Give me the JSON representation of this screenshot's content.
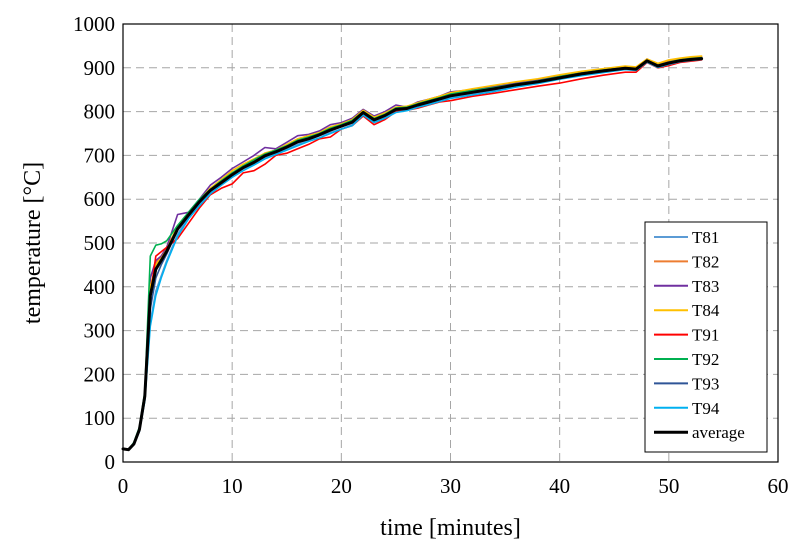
{
  "chart_data": {
    "type": "line",
    "title": "",
    "xlabel": "time [minutes]",
    "ylabel": "temperature [°C]",
    "xlim": [
      0,
      60
    ],
    "ylim": [
      0,
      1000
    ],
    "xticks": [
      0,
      10,
      20,
      30,
      40,
      50,
      60
    ],
    "yticks": [
      0,
      100,
      200,
      300,
      400,
      500,
      600,
      700,
      800,
      900,
      1000
    ],
    "grid": true,
    "legend_position": "bottom-right",
    "series": [
      {
        "name": "T81",
        "color": "#5b9bd5",
        "x": [
          0,
          0.5,
          1,
          1.5,
          2,
          2.5,
          3,
          3.5,
          4,
          5,
          6,
          7,
          8,
          9,
          10,
          11,
          12,
          13,
          14,
          15,
          16,
          17,
          18,
          19,
          20,
          21,
          22,
          23,
          24,
          25,
          26,
          27,
          28,
          29,
          30,
          32,
          34,
          36,
          38,
          40,
          42,
          44,
          46,
          47,
          48,
          49,
          50,
          51,
          52,
          53
        ],
        "y": [
          30,
          28,
          40,
          70,
          140,
          320,
          390,
          425,
          460,
          520,
          560,
          590,
          615,
          635,
          655,
          670,
          680,
          695,
          705,
          715,
          725,
          735,
          745,
          752,
          760,
          770,
          795,
          778,
          788,
          800,
          805,
          812,
          818,
          825,
          832,
          840,
          848,
          860,
          868,
          878,
          885,
          892,
          898,
          896,
          915,
          902,
          910,
          915,
          918,
          920
        ]
      },
      {
        "name": "T82",
        "color": "#ed7d31",
        "x": [
          0,
          0.5,
          1,
          1.5,
          2,
          2.5,
          3,
          3.5,
          4,
          5,
          6,
          7,
          8,
          9,
          10,
          11,
          12,
          13,
          14,
          15,
          16,
          17,
          18,
          19,
          20,
          21,
          22,
          23,
          24,
          25,
          26,
          27,
          28,
          29,
          30,
          32,
          34,
          36,
          38,
          40,
          42,
          44,
          46,
          47,
          48,
          49,
          50,
          51,
          52,
          53
        ],
        "y": [
          30,
          28,
          42,
          75,
          150,
          390,
          455,
          470,
          490,
          535,
          565,
          595,
          620,
          640,
          660,
          675,
          690,
          705,
          712,
          722,
          735,
          742,
          750,
          760,
          770,
          778,
          802,
          785,
          795,
          808,
          812,
          818,
          825,
          833,
          840,
          848,
          855,
          865,
          872,
          882,
          890,
          897,
          903,
          900,
          918,
          908,
          915,
          920,
          923,
          925
        ]
      },
      {
        "name": "T83",
        "color": "#7030a0",
        "x": [
          0,
          0.5,
          1,
          1.5,
          2,
          2.5,
          3,
          3.5,
          4,
          5,
          6,
          7,
          8,
          9,
          10,
          11,
          12,
          13,
          14,
          15,
          16,
          17,
          18,
          19,
          20,
          21,
          22,
          23,
          24,
          25,
          26,
          27,
          28,
          29,
          30,
          32,
          34,
          36,
          38,
          40,
          42,
          44,
          46,
          47,
          48,
          49,
          50,
          51,
          52,
          53
        ],
        "y": [
          30,
          28,
          42,
          75,
          150,
          420,
          460,
          470,
          490,
          565,
          570,
          600,
          632,
          650,
          670,
          685,
          700,
          718,
          715,
          730,
          745,
          748,
          756,
          770,
          775,
          785,
          805,
          790,
          800,
          815,
          810,
          822,
          828,
          835,
          845,
          850,
          858,
          865,
          873,
          880,
          888,
          895,
          900,
          898,
          920,
          905,
          912,
          918,
          920,
          922
        ]
      },
      {
        "name": "T84",
        "color": "#ffc000",
        "x": [
          0,
          0.5,
          1,
          1.5,
          2,
          2.5,
          3,
          3.5,
          4,
          5,
          6,
          7,
          8,
          9,
          10,
          11,
          12,
          13,
          14,
          15,
          16,
          17,
          18,
          19,
          20,
          21,
          22,
          23,
          24,
          25,
          26,
          27,
          28,
          29,
          30,
          32,
          34,
          36,
          38,
          40,
          42,
          44,
          46,
          47,
          48,
          49,
          50,
          51,
          52,
          53
        ],
        "y": [
          30,
          28,
          42,
          75,
          150,
          400,
          450,
          465,
          485,
          540,
          568,
          598,
          625,
          645,
          665,
          680,
          692,
          705,
          712,
          725,
          738,
          745,
          752,
          765,
          772,
          782,
          803,
          787,
          797,
          810,
          812,
          820,
          828,
          835,
          843,
          852,
          860,
          868,
          875,
          884,
          892,
          898,
          904,
          902,
          920,
          910,
          918,
          922,
          925,
          927
        ]
      },
      {
        "name": "T91",
        "color": "#ff0000",
        "x": [
          0,
          0.5,
          1,
          1.5,
          2,
          2.5,
          3,
          3.5,
          4,
          5,
          6,
          7,
          8,
          9,
          10,
          11,
          12,
          13,
          14,
          15,
          16,
          17,
          18,
          19,
          20,
          21,
          22,
          23,
          24,
          25,
          26,
          27,
          28,
          29,
          30,
          32,
          34,
          36,
          38,
          40,
          42,
          44,
          46,
          47,
          48,
          49,
          50,
          51,
          52,
          53
        ],
        "y": [
          30,
          28,
          40,
          72,
          145,
          380,
          470,
          480,
          490,
          510,
          545,
          580,
          610,
          625,
          635,
          660,
          665,
          680,
          700,
          705,
          715,
          725,
          738,
          742,
          760,
          768,
          790,
          770,
          782,
          800,
          803,
          808,
          815,
          822,
          825,
          835,
          842,
          850,
          858,
          865,
          875,
          883,
          890,
          890,
          912,
          900,
          905,
          912,
          915,
          918
        ]
      },
      {
        "name": "T92",
        "color": "#00b050",
        "x": [
          0,
          0.5,
          1,
          1.5,
          2,
          2.5,
          3,
          3.5,
          4,
          5,
          6,
          7,
          8,
          9,
          10,
          11,
          12,
          13,
          14,
          15,
          16,
          17,
          18,
          19,
          20,
          21,
          22,
          23,
          24,
          25,
          26,
          27,
          28,
          29,
          30,
          32,
          34,
          36,
          38,
          40,
          42,
          44,
          46,
          47,
          48,
          49,
          50,
          51,
          52,
          53
        ],
        "y": [
          30,
          28,
          45,
          80,
          160,
          470,
          495,
          498,
          505,
          540,
          570,
          600,
          622,
          642,
          660,
          676,
          690,
          703,
          712,
          722,
          735,
          742,
          750,
          762,
          770,
          780,
          800,
          784,
          794,
          808,
          810,
          818,
          825,
          832,
          840,
          848,
          855,
          863,
          870,
          880,
          888,
          895,
          900,
          898,
          917,
          906,
          913,
          918,
          921,
          923
        ]
      },
      {
        "name": "T93",
        "color": "#2f5597",
        "x": [
          0,
          0.5,
          1,
          1.5,
          2,
          2.5,
          3,
          3.5,
          4,
          5,
          6,
          7,
          8,
          9,
          10,
          11,
          12,
          13,
          14,
          15,
          16,
          17,
          18,
          19,
          20,
          21,
          22,
          23,
          24,
          25,
          26,
          27,
          28,
          29,
          30,
          32,
          34,
          36,
          38,
          40,
          42,
          44,
          46,
          47,
          48,
          49,
          50,
          51,
          52,
          53
        ],
        "y": [
          30,
          28,
          40,
          72,
          145,
          350,
          420,
          450,
          475,
          530,
          560,
          592,
          618,
          638,
          655,
          670,
          684,
          698,
          708,
          718,
          730,
          738,
          746,
          756,
          765,
          774,
          797,
          780,
          790,
          804,
          806,
          814,
          820,
          827,
          835,
          843,
          850,
          860,
          867,
          877,
          884,
          891,
          897,
          895,
          914,
          903,
          910,
          915,
          918,
          920
        ]
      },
      {
        "name": "T94",
        "color": "#00b0f0",
        "x": [
          0,
          0.5,
          1,
          1.5,
          2,
          2.5,
          3,
          3.5,
          4,
          5,
          6,
          7,
          8,
          9,
          10,
          11,
          12,
          13,
          14,
          15,
          16,
          17,
          18,
          19,
          20,
          21,
          22,
          23,
          24,
          25,
          26,
          27,
          28,
          29,
          30,
          32,
          34,
          36,
          38,
          40,
          42,
          44,
          46,
          47,
          48,
          49,
          50,
          51,
          52,
          53
        ],
        "y": [
          30,
          28,
          40,
          70,
          140,
          310,
          380,
          420,
          455,
          515,
          555,
          585,
          612,
          632,
          650,
          665,
          678,
          692,
          702,
          712,
          722,
          732,
          740,
          750,
          760,
          768,
          792,
          775,
          785,
          798,
          802,
          810,
          816,
          823,
          830,
          838,
          846,
          856,
          864,
          874,
          882,
          889,
          896,
          894,
          913,
          901,
          908,
          914,
          917,
          919
        ]
      },
      {
        "name": "average",
        "color": "#000000",
        "x": [
          0,
          0.5,
          1,
          1.5,
          2,
          2.5,
          3,
          3.5,
          4,
          5,
          6,
          7,
          8,
          9,
          10,
          11,
          12,
          13,
          14,
          15,
          16,
          17,
          18,
          19,
          20,
          21,
          22,
          23,
          24,
          25,
          26,
          27,
          28,
          29,
          30,
          32,
          34,
          36,
          38,
          40,
          42,
          44,
          46,
          47,
          48,
          49,
          50,
          51,
          52,
          53
        ],
        "y": [
          30,
          28,
          41,
          74,
          150,
          380,
          440,
          460,
          481,
          532,
          564,
          594,
          620,
          638,
          656,
          672,
          684,
          699,
          708,
          719,
          731,
          738,
          747,
          758,
          767,
          776,
          798,
          781,
          791,
          805,
          807,
          815,
          822,
          829,
          836,
          844,
          852,
          861,
          868,
          877,
          886,
          893,
          899,
          897,
          916,
          904,
          911,
          916,
          919,
          921
        ]
      }
    ]
  }
}
